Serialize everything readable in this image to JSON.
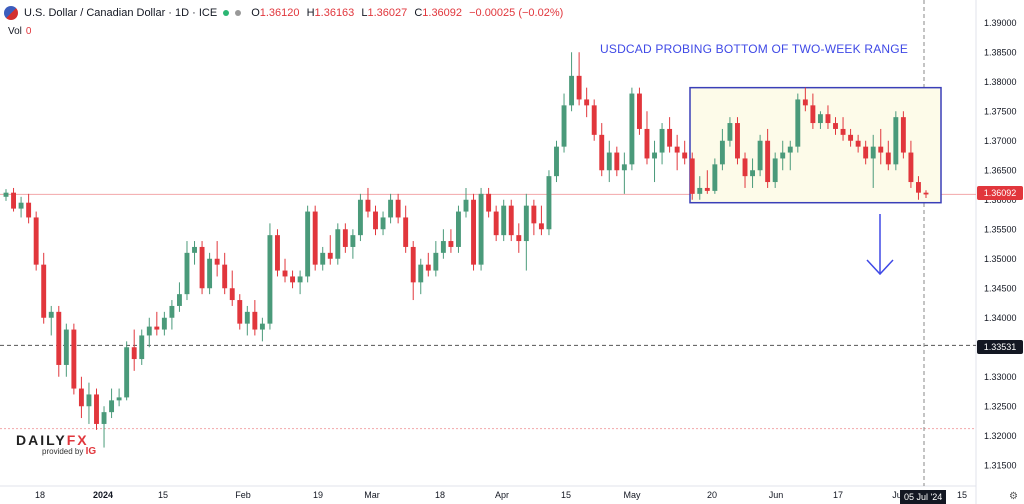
{
  "header": {
    "symbol": "U.S. Dollar / Canadian Dollar · 1D · ICE",
    "o_label": "O",
    "o": "1.36120",
    "h_label": "H",
    "h": "1.36163",
    "l_label": "L",
    "l": "1.36027",
    "c_label": "C",
    "c": "1.36092",
    "change": "−0.00025 (−0.02%)",
    "vol_label": "Vol",
    "vol": "0"
  },
  "annotation": "USDCAD PROBING BOTTOM OF TWO-WEEK RANGE",
  "price_labels": {
    "last": "1.36092",
    "level": "1.33531"
  },
  "date_label": "05 Jul '24",
  "logo": {
    "main_a": "DAILY",
    "main_b": "FX",
    "sub_a": "provided by",
    "sub_b": "IG"
  },
  "colors": {
    "up": "#4a9a7a",
    "down": "#e1363c",
    "annotation": "#3f49e6",
    "box_fill": "#fdfbe9"
  },
  "chart_data": {
    "type": "candlestick",
    "title": "",
    "ylim": [
      1.3125,
      1.3925
    ],
    "y_ticks": [
      1.315,
      1.32,
      1.325,
      1.33,
      1.335,
      1.34,
      1.345,
      1.35,
      1.355,
      1.36,
      1.365,
      1.37,
      1.375,
      1.38,
      1.385,
      1.39
    ],
    "x_tick_labels": [
      "18",
      "2024",
      "15",
      "Feb",
      "19",
      "Mar",
      "18",
      "Apr",
      "15",
      "May",
      "20",
      "Jun",
      "17",
      "Jul",
      "15"
    ],
    "horizontal_levels": [
      1.36092,
      1.33531,
      1.3212
    ],
    "range_box": {
      "top": 1.379,
      "bottom": 1.3595
    },
    "candles": [
      [
        1.3605,
        1.3618,
        1.3598,
        1.3612
      ],
      [
        1.3612,
        1.362,
        1.358,
        1.3585
      ],
      [
        1.3585,
        1.3605,
        1.357,
        1.3595
      ],
      [
        1.3595,
        1.361,
        1.356,
        1.357
      ],
      [
        1.357,
        1.358,
        1.348,
        1.349
      ],
      [
        1.349,
        1.351,
        1.339,
        1.34
      ],
      [
        1.34,
        1.342,
        1.337,
        1.341
      ],
      [
        1.341,
        1.342,
        1.33,
        1.332
      ],
      [
        1.332,
        1.339,
        1.33,
        1.338
      ],
      [
        1.338,
        1.339,
        1.327,
        1.328
      ],
      [
        1.328,
        1.33,
        1.323,
        1.325
      ],
      [
        1.325,
        1.329,
        1.322,
        1.327
      ],
      [
        1.327,
        1.328,
        1.321,
        1.322
      ],
      [
        1.322,
        1.325,
        1.318,
        1.324
      ],
      [
        1.324,
        1.328,
        1.323,
        1.326
      ],
      [
        1.326,
        1.328,
        1.325,
        1.3265
      ],
      [
        1.3265,
        1.336,
        1.326,
        1.335
      ],
      [
        1.335,
        1.338,
        1.331,
        1.333
      ],
      [
        1.333,
        1.338,
        1.332,
        1.337
      ],
      [
        1.337,
        1.34,
        1.335,
        1.3385
      ],
      [
        1.3385,
        1.341,
        1.337,
        1.338
      ],
      [
        1.338,
        1.341,
        1.337,
        1.34
      ],
      [
        1.34,
        1.343,
        1.338,
        1.342
      ],
      [
        1.342,
        1.346,
        1.341,
        1.344
      ],
      [
        1.344,
        1.353,
        1.343,
        1.351
      ],
      [
        1.351,
        1.353,
        1.349,
        1.352
      ],
      [
        1.352,
        1.353,
        1.344,
        1.345
      ],
      [
        1.345,
        1.351,
        1.344,
        1.35
      ],
      [
        1.35,
        1.353,
        1.347,
        1.349
      ],
      [
        1.349,
        1.351,
        1.344,
        1.345
      ],
      [
        1.345,
        1.348,
        1.342,
        1.343
      ],
      [
        1.343,
        1.344,
        1.338,
        1.339
      ],
      [
        1.339,
        1.342,
        1.337,
        1.341
      ],
      [
        1.341,
        1.343,
        1.337,
        1.338
      ],
      [
        1.338,
        1.34,
        1.336,
        1.339
      ],
      [
        1.339,
        1.356,
        1.338,
        1.354
      ],
      [
        1.354,
        1.355,
        1.347,
        1.348
      ],
      [
        1.348,
        1.35,
        1.346,
        1.347
      ],
      [
        1.347,
        1.348,
        1.345,
        1.346
      ],
      [
        1.346,
        1.348,
        1.344,
        1.347
      ],
      [
        1.347,
        1.359,
        1.346,
        1.358
      ],
      [
        1.358,
        1.359,
        1.348,
        1.349
      ],
      [
        1.349,
        1.352,
        1.348,
        1.351
      ],
      [
        1.351,
        1.354,
        1.349,
        1.35
      ],
      [
        1.35,
        1.356,
        1.349,
        1.355
      ],
      [
        1.355,
        1.356,
        1.351,
        1.352
      ],
      [
        1.352,
        1.355,
        1.35,
        1.354
      ],
      [
        1.354,
        1.361,
        1.353,
        1.36
      ],
      [
        1.36,
        1.362,
        1.357,
        1.358
      ],
      [
        1.358,
        1.359,
        1.354,
        1.355
      ],
      [
        1.355,
        1.358,
        1.354,
        1.357
      ],
      [
        1.357,
        1.361,
        1.356,
        1.36
      ],
      [
        1.36,
        1.361,
        1.356,
        1.357
      ],
      [
        1.357,
        1.359,
        1.351,
        1.352
      ],
      [
        1.352,
        1.353,
        1.343,
        1.346
      ],
      [
        1.346,
        1.35,
        1.344,
        1.349
      ],
      [
        1.349,
        1.351,
        1.347,
        1.348
      ],
      [
        1.348,
        1.353,
        1.347,
        1.351
      ],
      [
        1.351,
        1.355,
        1.35,
        1.353
      ],
      [
        1.353,
        1.355,
        1.351,
        1.352
      ],
      [
        1.352,
        1.359,
        1.351,
        1.358
      ],
      [
        1.358,
        1.362,
        1.357,
        1.36
      ],
      [
        1.36,
        1.361,
        1.348,
        1.349
      ],
      [
        1.349,
        1.362,
        1.348,
        1.361
      ],
      [
        1.361,
        1.362,
        1.357,
        1.358
      ],
      [
        1.358,
        1.359,
        1.353,
        1.354
      ],
      [
        1.354,
        1.36,
        1.353,
        1.359
      ],
      [
        1.359,
        1.36,
        1.353,
        1.354
      ],
      [
        1.354,
        1.356,
        1.351,
        1.353
      ],
      [
        1.353,
        1.361,
        1.348,
        1.359
      ],
      [
        1.359,
        1.36,
        1.354,
        1.356
      ],
      [
        1.356,
        1.359,
        1.354,
        1.355
      ],
      [
        1.355,
        1.365,
        1.354,
        1.364
      ],
      [
        1.364,
        1.37,
        1.363,
        1.369
      ],
      [
        1.369,
        1.378,
        1.368,
        1.376
      ],
      [
        1.376,
        1.385,
        1.375,
        1.381
      ],
      [
        1.381,
        1.385,
        1.376,
        1.377
      ],
      [
        1.377,
        1.379,
        1.374,
        1.376
      ],
      [
        1.376,
        1.377,
        1.37,
        1.371
      ],
      [
        1.371,
        1.373,
        1.364,
        1.365
      ],
      [
        1.365,
        1.37,
        1.363,
        1.368
      ],
      [
        1.368,
        1.369,
        1.364,
        1.365
      ],
      [
        1.365,
        1.368,
        1.361,
        1.366
      ],
      [
        1.366,
        1.379,
        1.365,
        1.378
      ],
      [
        1.378,
        1.379,
        1.371,
        1.372
      ],
      [
        1.372,
        1.375,
        1.366,
        1.367
      ],
      [
        1.367,
        1.37,
        1.363,
        1.368
      ],
      [
        1.368,
        1.373,
        1.366,
        1.372
      ],
      [
        1.372,
        1.374,
        1.368,
        1.369
      ],
      [
        1.369,
        1.371,
        1.365,
        1.368
      ],
      [
        1.368,
        1.37,
        1.366,
        1.367
      ],
      [
        1.367,
        1.368,
        1.36,
        1.361
      ],
      [
        1.361,
        1.364,
        1.36,
        1.362
      ],
      [
        1.362,
        1.365,
        1.361,
        1.3615
      ],
      [
        1.3615,
        1.367,
        1.361,
        1.366
      ],
      [
        1.366,
        1.372,
        1.365,
        1.37
      ],
      [
        1.37,
        1.374,
        1.369,
        1.373
      ],
      [
        1.373,
        1.374,
        1.366,
        1.367
      ],
      [
        1.367,
        1.368,
        1.362,
        1.364
      ],
      [
        1.364,
        1.367,
        1.362,
        1.365
      ],
      [
        1.365,
        1.371,
        1.364,
        1.37
      ],
      [
        1.37,
        1.372,
        1.362,
        1.363
      ],
      [
        1.363,
        1.368,
        1.362,
        1.367
      ],
      [
        1.367,
        1.37,
        1.365,
        1.368
      ],
      [
        1.368,
        1.37,
        1.365,
        1.369
      ],
      [
        1.369,
        1.378,
        1.368,
        1.377
      ],
      [
        1.377,
        1.379,
        1.375,
        1.376
      ],
      [
        1.376,
        1.378,
        1.372,
        1.373
      ],
      [
        1.373,
        1.375,
        1.372,
        1.3745
      ],
      [
        1.3745,
        1.376,
        1.372,
        1.373
      ],
      [
        1.373,
        1.374,
        1.371,
        1.372
      ],
      [
        1.372,
        1.374,
        1.37,
        1.371
      ],
      [
        1.371,
        1.372,
        1.369,
        1.37
      ],
      [
        1.37,
        1.371,
        1.368,
        1.369
      ],
      [
        1.369,
        1.37,
        1.366,
        1.367
      ],
      [
        1.367,
        1.371,
        1.362,
        1.369
      ],
      [
        1.369,
        1.372,
        1.366,
        1.368
      ],
      [
        1.368,
        1.37,
        1.365,
        1.366
      ],
      [
        1.366,
        1.375,
        1.365,
        1.374
      ],
      [
        1.374,
        1.375,
        1.367,
        1.368
      ],
      [
        1.368,
        1.37,
        1.362,
        1.363
      ],
      [
        1.363,
        1.364,
        1.36,
        1.3612
      ],
      [
        1.3612,
        1.3616,
        1.3603,
        1.3609
      ]
    ]
  }
}
